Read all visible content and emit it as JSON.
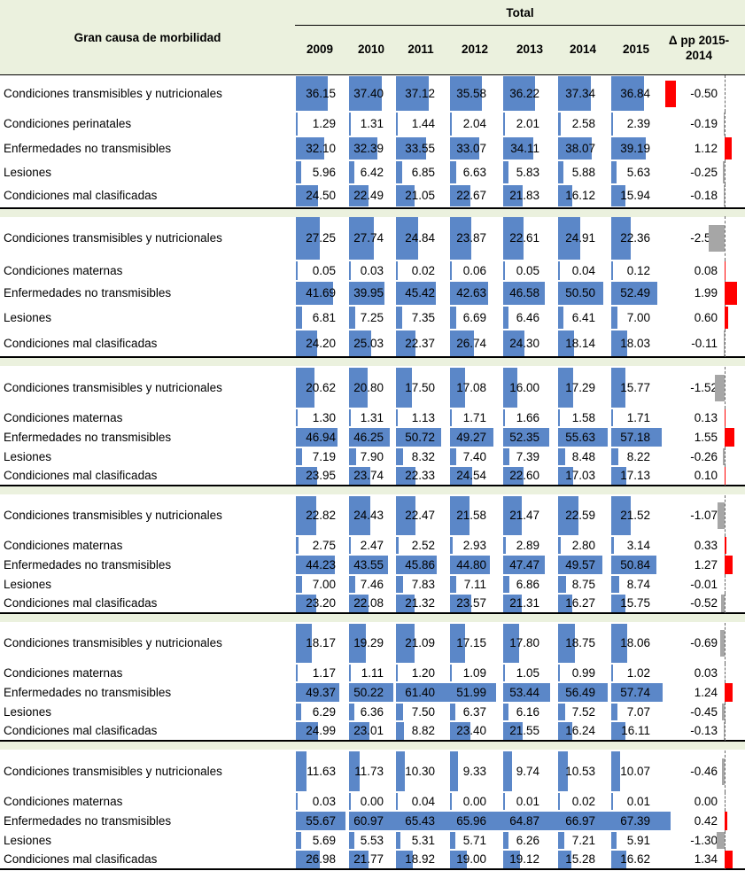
{
  "header": {
    "label": "Gran causa de morbilidad",
    "total": "Total",
    "years": [
      "2009",
      "2010",
      "2011",
      "2012",
      "2013",
      "2014",
      "2015"
    ],
    "delta": "Δ pp 2015-2014"
  },
  "colors": {
    "bar": "#5b87c8",
    "delta_positive": "#ff0000",
    "delta_negative": "#a6a6a6",
    "delta_first": "#ff0000",
    "header_bg": "#ebf1de"
  },
  "chart_data": {
    "type": "table",
    "scale_max": 100,
    "delta_scale_max": 2.55,
    "groups": [
      {
        "rows": [
          {
            "label": "Condiciones transmisibles y nutricionales",
            "values": [
              36.15,
              37.4,
              37.12,
              35.58,
              36.22,
              37.34,
              36.84
            ],
            "delta": -0.5,
            "delta_color": "red"
          },
          {
            "label": "Condiciones perinatales",
            "values": [
              1.29,
              1.31,
              1.44,
              2.04,
              2.01,
              2.58,
              2.39
            ],
            "delta": -0.19
          },
          {
            "label": "Enfermedades no transmisibles",
            "values": [
              32.1,
              32.39,
              33.55,
              33.07,
              34.11,
              38.07,
              39.19
            ],
            "delta": 1.12
          },
          {
            "label": "Lesiones",
            "values": [
              5.96,
              6.42,
              6.85,
              6.63,
              5.83,
              5.88,
              5.63
            ],
            "delta": -0.25
          },
          {
            "label": "Condiciones mal clasificadas",
            "values": [
              24.5,
              22.49,
              21.05,
              22.67,
              21.83,
              16.12,
              15.94
            ],
            "delta": -0.18
          }
        ]
      },
      {
        "rows": [
          {
            "label": "Condiciones transmisibles y nutricionales",
            "values": [
              27.25,
              27.74,
              24.84,
              23.87,
              22.61,
              24.91,
              22.36
            ],
            "delta": -2.55
          },
          {
            "label": "Condiciones maternas",
            "values": [
              0.05,
              0.03,
              0.02,
              0.06,
              0.05,
              0.04,
              0.12
            ],
            "delta": 0.08
          },
          {
            "label": "Enfermedades no transmisibles",
            "values": [
              41.69,
              39.95,
              45.42,
              42.63,
              46.58,
              50.5,
              52.49
            ],
            "delta": 1.99
          },
          {
            "label": "Lesiones",
            "values": [
              6.81,
              7.25,
              7.35,
              6.69,
              6.46,
              6.41,
              7.0
            ],
            "delta": 0.6
          },
          {
            "label": "Condiciones mal clasificadas",
            "values": [
              24.2,
              25.03,
              22.37,
              26.74,
              24.3,
              18.14,
              18.03
            ],
            "delta": -0.11
          }
        ]
      },
      {
        "rows": [
          {
            "label": "Condiciones transmisibles y nutricionales",
            "values": [
              20.62,
              20.8,
              17.5,
              17.08,
              16.0,
              17.29,
              15.77
            ],
            "delta": -1.52
          },
          {
            "label": "Condiciones maternas",
            "values": [
              1.3,
              1.31,
              1.13,
              1.71,
              1.66,
              1.58,
              1.71
            ],
            "delta": 0.13
          },
          {
            "label": "Enfermedades no transmisibles",
            "values": [
              46.94,
              46.25,
              50.72,
              49.27,
              52.35,
              55.63,
              57.18
            ],
            "delta": 1.55
          },
          {
            "label": "Lesiones",
            "values": [
              7.19,
              7.9,
              8.32,
              7.4,
              7.39,
              8.48,
              8.22
            ],
            "delta": -0.26
          },
          {
            "label": "Condiciones mal clasificadas",
            "values": [
              23.95,
              23.74,
              22.33,
              24.54,
              22.6,
              17.03,
              17.13
            ],
            "delta": 0.1
          }
        ]
      },
      {
        "rows": [
          {
            "label": "Condiciones transmisibles y nutricionales",
            "values": [
              22.82,
              24.43,
              22.47,
              21.58,
              21.47,
              22.59,
              21.52
            ],
            "delta": -1.07
          },
          {
            "label": "Condiciones maternas",
            "values": [
              2.75,
              2.47,
              2.52,
              2.93,
              2.89,
              2.8,
              3.14
            ],
            "delta": 0.33
          },
          {
            "label": "Enfermedades no transmisibles",
            "values": [
              44.23,
              43.55,
              45.86,
              44.8,
              47.47,
              49.57,
              50.84
            ],
            "delta": 1.27
          },
          {
            "label": "Lesiones",
            "values": [
              7.0,
              7.46,
              7.83,
              7.11,
              6.86,
              8.75,
              8.74
            ],
            "delta": -0.01
          },
          {
            "label": "Condiciones mal clasificadas",
            "values": [
              23.2,
              22.08,
              21.32,
              23.57,
              21.31,
              16.27,
              15.75
            ],
            "delta": -0.52
          }
        ]
      },
      {
        "rows": [
          {
            "label": "Condiciones transmisibles y nutricionales",
            "values": [
              18.17,
              19.29,
              21.09,
              17.15,
              17.8,
              18.75,
              18.06
            ],
            "delta": -0.69
          },
          {
            "label": "Condiciones maternas",
            "values": [
              1.17,
              1.11,
              1.2,
              1.09,
              1.05,
              0.99,
              1.02
            ],
            "delta": 0.03
          },
          {
            "label": "Enfermedades no transmisibles",
            "values": [
              49.37,
              50.22,
              61.4,
              51.99,
              53.44,
              56.49,
              57.74
            ],
            "delta": 1.24
          },
          {
            "label": "Lesiones",
            "values": [
              6.29,
              6.36,
              7.5,
              6.37,
              6.16,
              7.52,
              7.07
            ],
            "delta": -0.45
          },
          {
            "label": "Condiciones mal clasificadas",
            "values": [
              24.99,
              23.01,
              8.82,
              23.4,
              21.55,
              16.24,
              16.11
            ],
            "delta": -0.13
          }
        ]
      },
      {
        "rows": [
          {
            "label": "Condiciones transmisibles y nutricionales",
            "values": [
              11.63,
              11.73,
              10.3,
              9.33,
              9.74,
              10.53,
              10.07
            ],
            "delta": -0.46
          },
          {
            "label": "Condiciones maternas",
            "values": [
              0.03,
              0.0,
              0.04,
              0.0,
              0.01,
              0.02,
              0.01
            ],
            "delta": 0.0
          },
          {
            "label": "Enfermedades no transmisibles",
            "values": [
              55.67,
              60.97,
              65.43,
              65.96,
              64.87,
              66.97,
              67.39
            ],
            "delta": 0.42
          },
          {
            "label": "Lesiones",
            "values": [
              5.69,
              5.53,
              5.31,
              5.71,
              6.26,
              7.21,
              5.91
            ],
            "delta": -1.3
          },
          {
            "label": "Condiciones mal clasificadas",
            "values": [
              26.98,
              21.77,
              18.92,
              19.0,
              19.12,
              15.28,
              16.62
            ],
            "delta": 1.34
          }
        ]
      }
    ]
  }
}
